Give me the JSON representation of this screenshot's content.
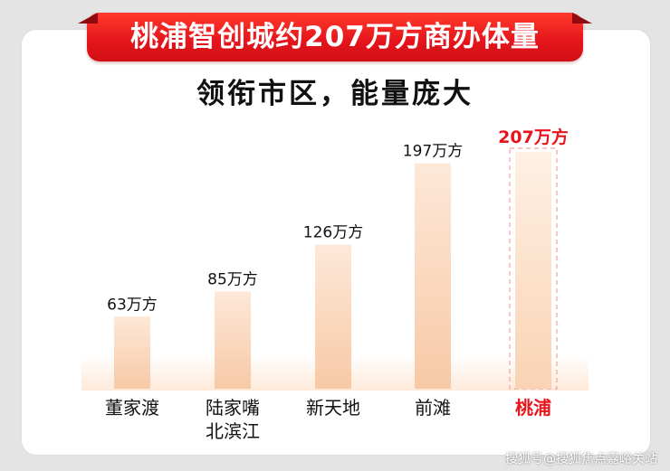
{
  "header": {
    "banner_title": "桃浦智创城约207万方商办体量",
    "subtitle": "领衔市区，能量庞大"
  },
  "chart_data": {
    "type": "bar",
    "title": "桃浦智创城约207万方商办体量",
    "subtitle": "领衔市区，能量庞大",
    "xlabel": "",
    "ylabel": "",
    "ylim": [
      0,
      207
    ],
    "grid": false,
    "categories": [
      [
        "董家渡"
      ],
      [
        "陆家嘴",
        "北滨江"
      ],
      [
        "新天地"
      ],
      [
        "前滩"
      ],
      [
        "桃浦"
      ]
    ],
    "values": [
      63,
      85,
      126,
      197,
      207
    ],
    "value_labels": [
      "63万方",
      "85万方",
      "126万方",
      "197万方",
      "207万方"
    ],
    "highlight_index": 4,
    "colors": {
      "bar_top": "#fde8d8",
      "bar_bottom": "#f7c9a6",
      "label": "#111111",
      "highlight": "#e8141b"
    }
  },
  "footer": {
    "watermark": "搜狐号@搜狐焦点嘉峪关站"
  }
}
